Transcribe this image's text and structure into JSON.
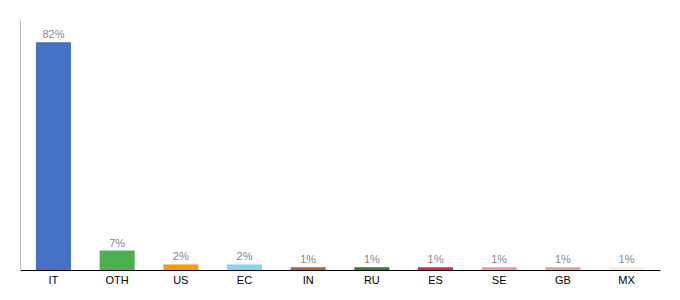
{
  "chart_data": {
    "type": "bar",
    "categories": [
      "IT",
      "OTH",
      "US",
      "EC",
      "IN",
      "RU",
      "ES",
      "SE",
      "GB",
      "MX"
    ],
    "values": [
      82,
      7,
      2,
      2,
      1,
      1,
      1,
      1,
      1,
      1
    ],
    "value_labels": [
      "82%",
      "7%",
      "2%",
      "2%",
      "1%",
      "1%",
      "1%",
      "1%",
      "1%",
      "1%"
    ],
    "colors": [
      "#4472c4",
      "#4caf50",
      "#ff9800",
      "#81d4fa",
      "#b5651d",
      "#2e7d32",
      "#e91e63",
      "#f48fb1",
      "#e8a090",
      "#f5f0d0"
    ],
    "ylim": [
      0,
      90
    ],
    "data_labels": true,
    "tick_labels": "x",
    "grid": false
  }
}
